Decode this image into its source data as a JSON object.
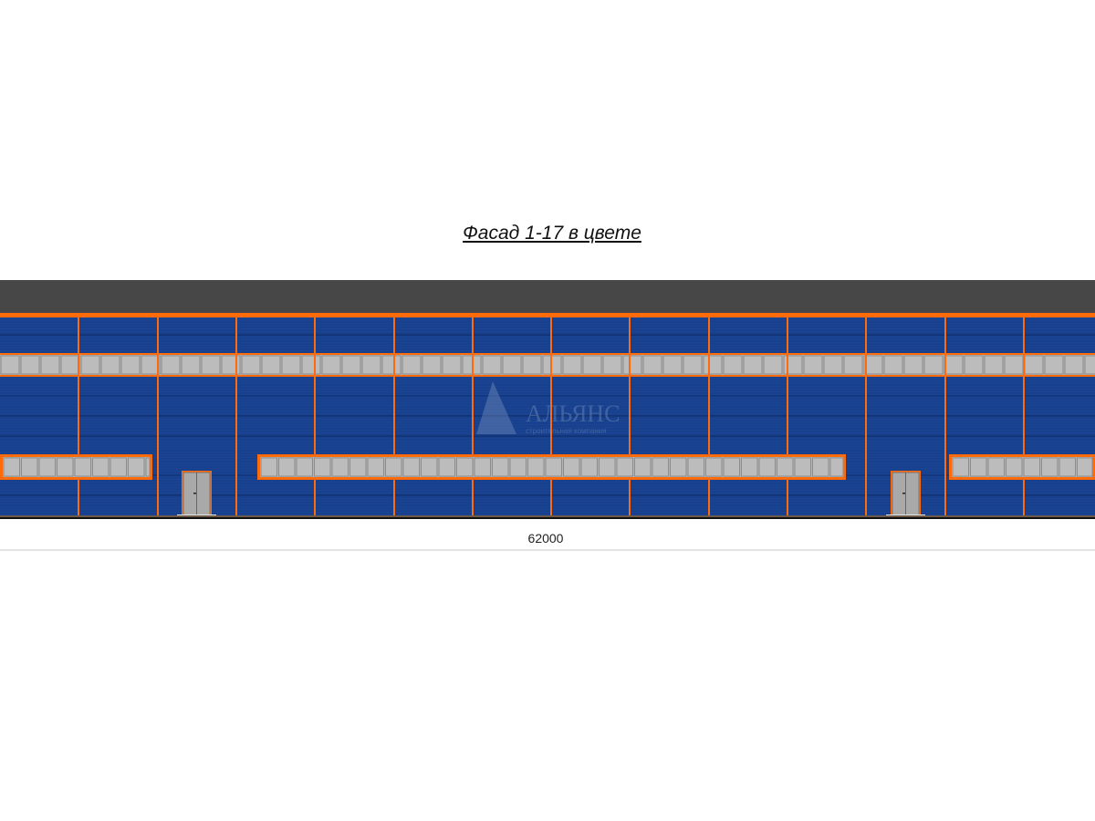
{
  "title": "Фасад 1-17 в цвете",
  "dimension": "62000",
  "watermark": {
    "name": "АЛЬЯНС",
    "subtitle": "строительная компания"
  },
  "colors": {
    "roof": "#474747",
    "trim": "#ff6a0a",
    "cladding": "#1a4595",
    "window": "#b5b5b5",
    "door": "#a9a9a9"
  }
}
